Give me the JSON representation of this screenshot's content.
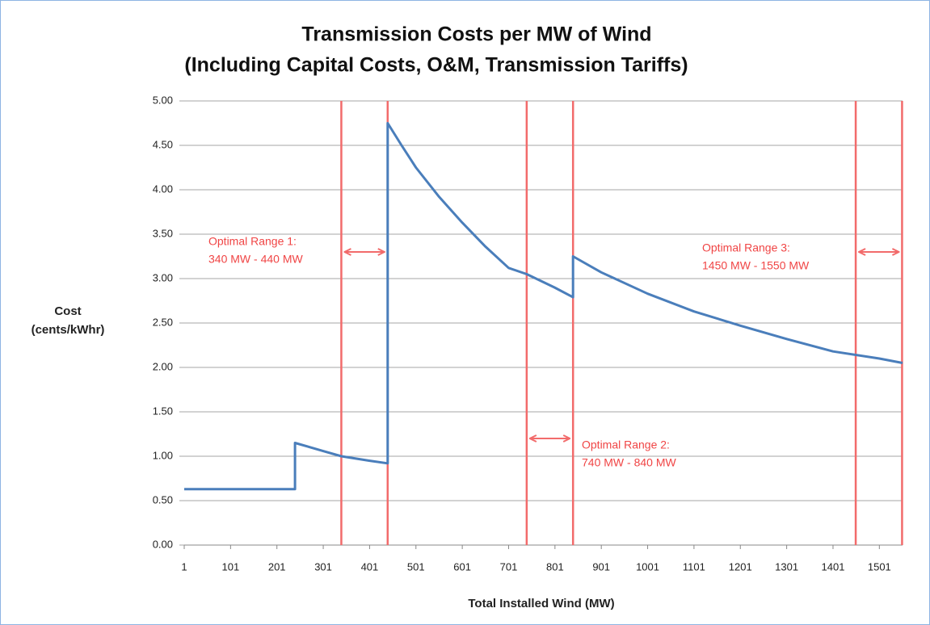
{
  "chart_data": {
    "type": "line",
    "title": [
      "Transmission Costs per MW of Wind",
      "(Including Capital Costs, O&M, Transmission Tariffs)"
    ],
    "x_label": "Total Installed Wind (MW)",
    "y_label": [
      "Cost",
      "(cents/kWhr)"
    ],
    "x": [
      1,
      240,
      240,
      300,
      340,
      400,
      440,
      440,
      470,
      501,
      551,
      601,
      651,
      701,
      740,
      800,
      840,
      840,
      901,
      1001,
      1101,
      1201,
      1301,
      1401,
      1501,
      1551
    ],
    "series": [
      {
        "color": "#4a7ebb",
        "values": [
          0.63,
          0.63,
          1.15,
          1.06,
          1.0,
          0.95,
          0.92,
          4.75,
          4.5,
          4.25,
          3.92,
          3.63,
          3.36,
          3.12,
          3.05,
          2.9,
          2.79,
          3.25,
          3.07,
          2.83,
          2.63,
          2.47,
          2.32,
          2.18,
          2.1,
          2.05
        ]
      }
    ],
    "xlim": [
      1,
      1551
    ],
    "xticks": [
      1,
      101,
      201,
      301,
      401,
      501,
      601,
      701,
      801,
      901,
      1001,
      1101,
      1201,
      1301,
      1401,
      1501
    ],
    "ylim": [
      0,
      5
    ],
    "yticks": [
      {
        "value": 0,
        "label": "0.00"
      },
      {
        "value": 0.5,
        "label": "0.50"
      },
      {
        "value": 1,
        "label": "1.00"
      },
      {
        "value": 1.5,
        "label": "1.50"
      },
      {
        "value": 2,
        "label": "2.00"
      },
      {
        "value": 2.5,
        "label": "2.50"
      },
      {
        "value": 3,
        "label": "3.00"
      },
      {
        "value": 3.5,
        "label": "3.50"
      },
      {
        "value": 4,
        "label": "4.00"
      },
      {
        "value": 4.5,
        "label": "4.50"
      },
      {
        "value": 5,
        "label": "5.00"
      }
    ],
    "grid": true,
    "range_color": "#f26b6b",
    "ranges": [
      {
        "label": [
          "Optimal Range 1:",
          "340 MW - 440 MW"
        ],
        "x": [
          340,
          440
        ],
        "y": 3.3
      },
      {
        "label": [
          "Optimal Range 2:",
          "740 MW - 840 MW"
        ],
        "x": [
          740,
          840
        ],
        "y": 1.2
      },
      {
        "label": [
          "Optimal Range 3:",
          "1450 MW - 1550 MW"
        ],
        "x": [
          1450,
          1550
        ],
        "y": 3.3
      }
    ]
  }
}
